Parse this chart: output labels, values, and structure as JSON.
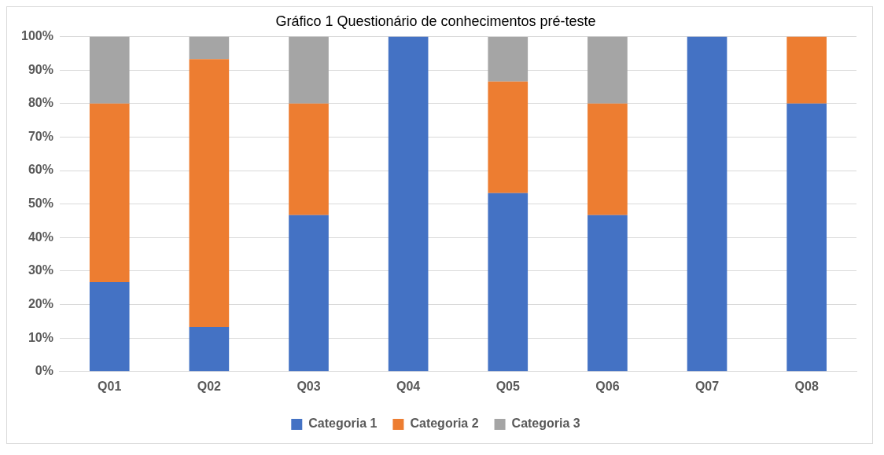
{
  "chart_data": {
    "type": "bar",
    "title": "Gráfico 1 Questionário de conhecimentos pré-teste",
    "stacked": true,
    "categories": [
      "Q01",
      "Q02",
      "Q03",
      "Q04",
      "Q05",
      "Q06",
      "Q07",
      "Q08"
    ],
    "series": [
      {
        "name": "Categoria 1",
        "color": "#4472c4",
        "values": [
          26.7,
          13.3,
          46.7,
          100,
          53.3,
          46.7,
          100,
          80
        ]
      },
      {
        "name": "Categoria 2",
        "color": "#ed7d31",
        "values": [
          53.3,
          80,
          33.3,
          0,
          33.3,
          33.3,
          0,
          20
        ]
      },
      {
        "name": "Categoria 3",
        "color": "#a5a5a5",
        "values": [
          20,
          6.7,
          20,
          0,
          13.3,
          20,
          0,
          0
        ]
      }
    ],
    "ylim": [
      0,
      100
    ],
    "yticks": [
      {
        "value": 0,
        "label": "0%"
      },
      {
        "value": 10,
        "label": "10%"
      },
      {
        "value": 20,
        "label": "20%"
      },
      {
        "value": 30,
        "label": "30%"
      },
      {
        "value": 40,
        "label": "40%"
      },
      {
        "value": 50,
        "label": "50%"
      },
      {
        "value": 60,
        "label": "60%"
      },
      {
        "value": 70,
        "label": "70%"
      },
      {
        "value": 80,
        "label": "80%"
      },
      {
        "value": 90,
        "label": "90%"
      },
      {
        "value": 100,
        "label": "100%"
      }
    ],
    "grid": "y",
    "legend": "bottom"
  }
}
